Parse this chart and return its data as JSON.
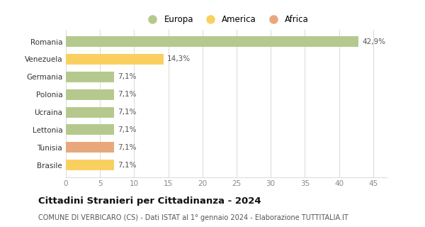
{
  "categories": [
    "Romania",
    "Venezuela",
    "Germania",
    "Polonia",
    "Ucraina",
    "Lettonia",
    "Tunisia",
    "Brasile"
  ],
  "values": [
    42.9,
    14.3,
    7.1,
    7.1,
    7.1,
    7.1,
    7.1,
    7.1
  ],
  "labels": [
    "42,9%",
    "14,3%",
    "7,1%",
    "7,1%",
    "7,1%",
    "7,1%",
    "7,1%",
    "7,1%"
  ],
  "colors": [
    "#b5c98e",
    "#f9d060",
    "#b5c98e",
    "#b5c98e",
    "#b5c98e",
    "#b5c98e",
    "#e8a87c",
    "#f9d060"
  ],
  "legend": [
    {
      "label": "Europa",
      "color": "#b5c98e"
    },
    {
      "label": "America",
      "color": "#f9d060"
    },
    {
      "label": "Africa",
      "color": "#e8a87c"
    }
  ],
  "xlim": [
    0,
    47
  ],
  "xticks": [
    0,
    5,
    10,
    15,
    20,
    25,
    30,
    35,
    40,
    45
  ],
  "title": "Cittadini Stranieri per Cittadinanza - 2024",
  "subtitle": "COMUNE DI VERBICARO (CS) - Dati ISTAT al 1° gennaio 2024 - Elaborazione TUTTITALIA.IT",
  "background_color": "#ffffff",
  "grid_color": "#dddddd",
  "bar_height": 0.6,
  "label_fontsize": 7.5,
  "tick_label_fontsize": 7.5,
  "title_fontsize": 9.5,
  "subtitle_fontsize": 7.0,
  "legend_fontsize": 8.5
}
